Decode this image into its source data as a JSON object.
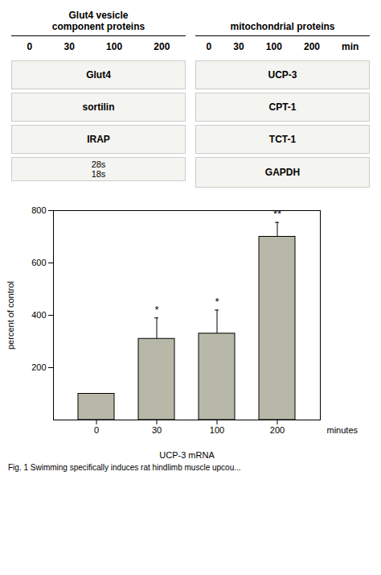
{
  "chart_data": {
    "type": "bar",
    "categories": [
      "0",
      "30",
      "100",
      "200"
    ],
    "values": [
      100,
      310,
      330,
      700
    ],
    "errors": [
      0,
      80,
      90,
      55
    ],
    "significance": [
      null,
      "*",
      "*",
      "**"
    ],
    "color": "#b8b8a8",
    "ylim": [
      0,
      800
    ],
    "yticks": [
      200,
      400,
      600,
      800
    ],
    "ylabel": "percent of control",
    "xlabel": "UCP-3 mRNA",
    "annotation": "minutes",
    "caption": "Fig. 1  Swimming specifically induces rat hindlimb muscle upcou...",
    "blot": {
      "title_left": "Glut4 vesicle\ncomponent proteins",
      "title_right": "mitochondrial proteins",
      "time_labels": [
        "0",
        "30",
        "100",
        "200"
      ],
      "time_unit": "min",
      "row_labels_left": [
        "Glut4",
        "sortilin",
        "IRAP"
      ],
      "row_labels_left_sub": [
        "28s",
        "18s"
      ],
      "row_labels_right": [
        "UCP-3",
        "CPT-1",
        "TCT-1",
        "GAPDH"
      ]
    }
  }
}
